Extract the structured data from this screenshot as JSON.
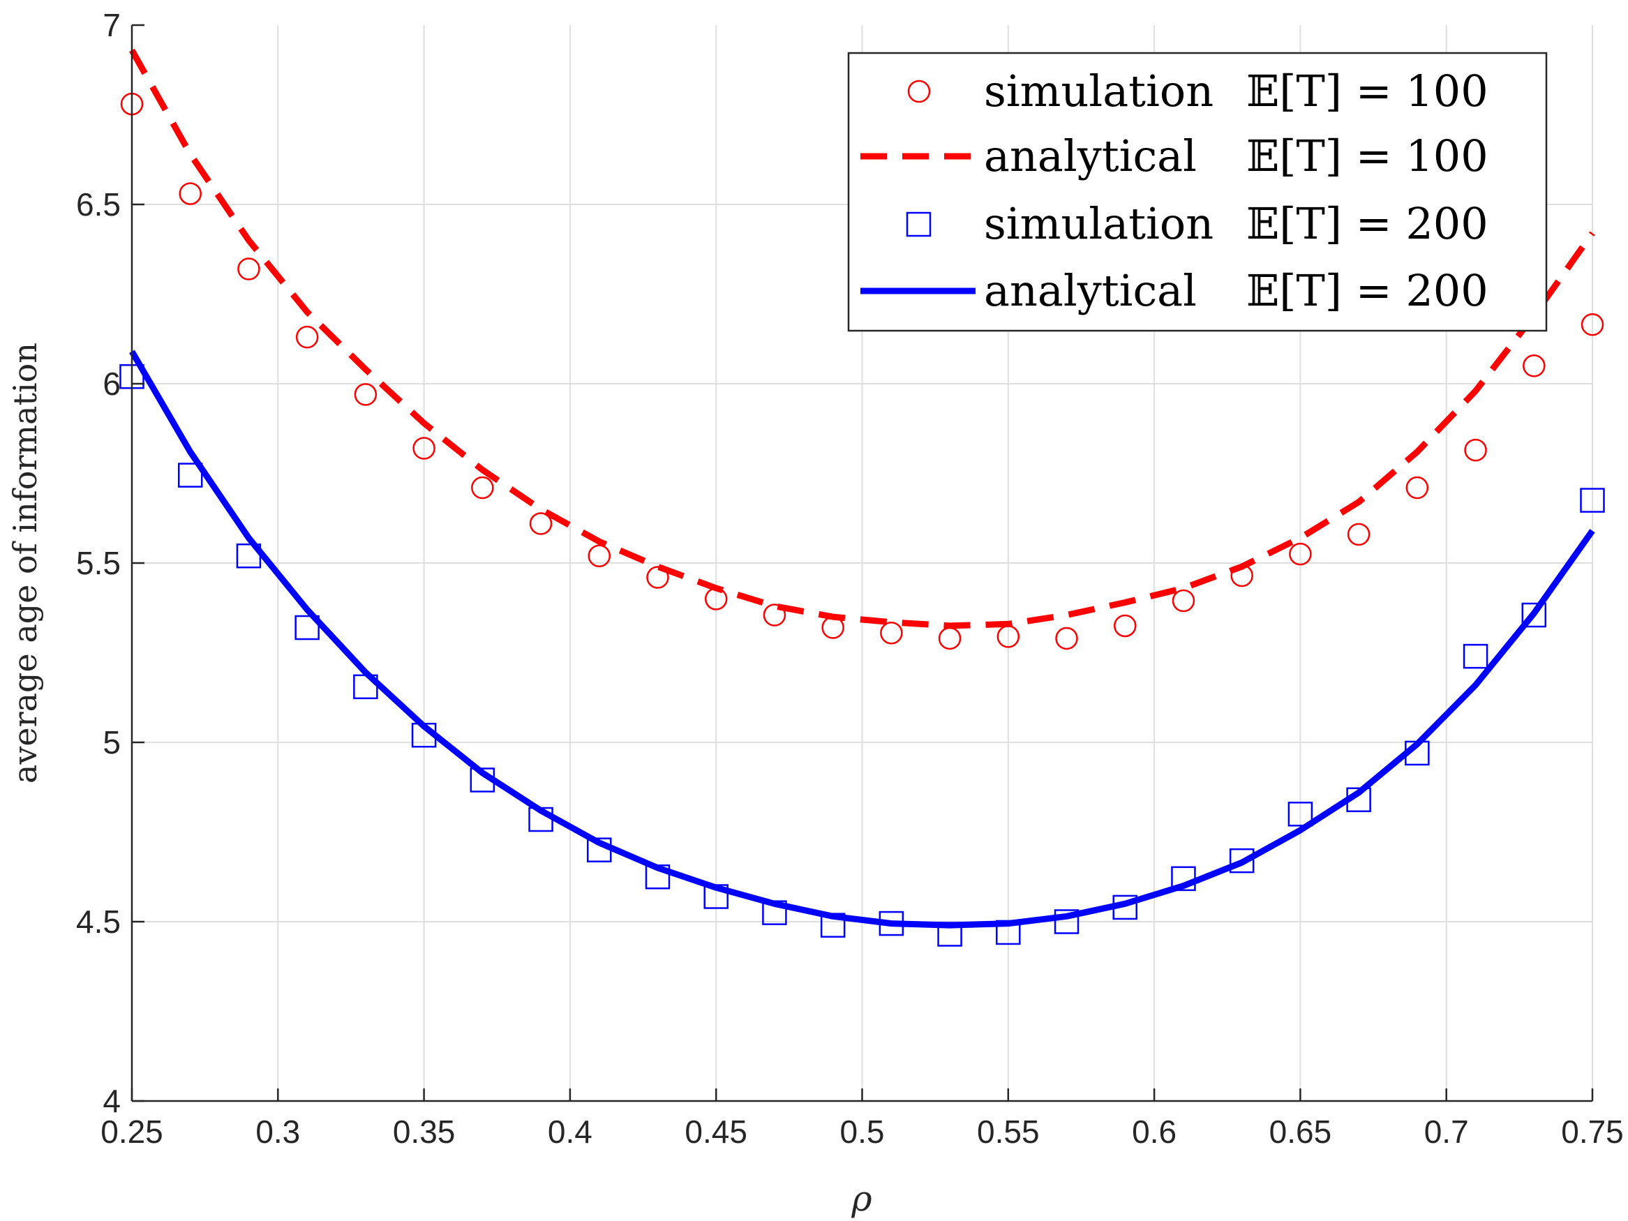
{
  "chart_data": {
    "type": "line",
    "title": "",
    "xlabel": "ρ",
    "ylabel": "average age of information",
    "xlim": [
      0.25,
      0.75
    ],
    "ylim": [
      4,
      7
    ],
    "grid": true,
    "legend_position": "top-right",
    "xticks": [
      {
        "value": 0.25,
        "label": "0.25"
      },
      {
        "value": 0.3,
        "label": "0.3"
      },
      {
        "value": 0.35,
        "label": "0.35"
      },
      {
        "value": 0.4,
        "label": "0.4"
      },
      {
        "value": 0.45,
        "label": "0.45"
      },
      {
        "value": 0.5,
        "label": "0.5"
      },
      {
        "value": 0.55,
        "label": "0.55"
      },
      {
        "value": 0.6,
        "label": "0.6"
      },
      {
        "value": 0.65,
        "label": "0.65"
      },
      {
        "value": 0.7,
        "label": "0.7"
      },
      {
        "value": 0.75,
        "label": "0.75"
      }
    ],
    "yticks": [
      {
        "value": 4,
        "label": "4"
      },
      {
        "value": 4.5,
        "label": "4.5"
      },
      {
        "value": 5,
        "label": "5"
      },
      {
        "value": 5.5,
        "label": "5.5"
      },
      {
        "value": 6,
        "label": "6"
      },
      {
        "value": 6.5,
        "label": "6.5"
      },
      {
        "value": 7,
        "label": "7"
      }
    ],
    "series": [
      {
        "name": "simulation 𝔼[T] = 100",
        "style": "circle",
        "color": "#ff0000",
        "x": [
          0.25,
          0.27,
          0.29,
          0.31,
          0.33,
          0.35,
          0.37,
          0.39,
          0.41,
          0.43,
          0.45,
          0.47,
          0.49,
          0.51,
          0.53,
          0.55,
          0.57,
          0.59,
          0.61,
          0.63,
          0.65,
          0.67,
          0.69,
          0.71,
          0.73,
          0.75
        ],
        "y": [
          6.78,
          6.53,
          6.32,
          6.13,
          5.97,
          5.82,
          5.71,
          5.61,
          5.52,
          5.46,
          5.4,
          5.355,
          5.32,
          5.305,
          5.29,
          5.295,
          5.29,
          5.325,
          5.395,
          5.465,
          5.525,
          5.58,
          5.71,
          5.815,
          6.05,
          6.165
        ]
      },
      {
        "name": "analytical 𝔼[T] = 100",
        "style": "dashed",
        "color": "#ff0000",
        "x": [
          0.25,
          0.27,
          0.29,
          0.31,
          0.33,
          0.35,
          0.37,
          0.39,
          0.41,
          0.43,
          0.45,
          0.47,
          0.49,
          0.51,
          0.53,
          0.55,
          0.57,
          0.59,
          0.61,
          0.63,
          0.65,
          0.67,
          0.69,
          0.71,
          0.73,
          0.75
        ],
        "y": [
          6.93,
          6.64,
          6.4,
          6.2,
          6.04,
          5.89,
          5.76,
          5.65,
          5.56,
          5.49,
          5.43,
          5.38,
          5.35,
          5.335,
          5.325,
          5.33,
          5.355,
          5.39,
          5.43,
          5.49,
          5.57,
          5.67,
          5.81,
          5.98,
          6.19,
          6.42
        ]
      },
      {
        "name": "simulation 𝔼[T] = 200",
        "style": "square",
        "color": "#0000ff",
        "x": [
          0.25,
          0.27,
          0.29,
          0.31,
          0.33,
          0.35,
          0.37,
          0.39,
          0.41,
          0.43,
          0.45,
          0.47,
          0.49,
          0.51,
          0.53,
          0.55,
          0.57,
          0.59,
          0.61,
          0.63,
          0.65,
          0.67,
          0.69,
          0.71,
          0.73,
          0.75
        ],
        "y": [
          6.02,
          5.745,
          5.52,
          5.32,
          5.155,
          5.02,
          4.895,
          4.785,
          4.7,
          4.625,
          4.57,
          4.525,
          4.49,
          4.495,
          4.465,
          4.47,
          4.5,
          4.54,
          4.62,
          4.67,
          4.8,
          4.84,
          4.97,
          5.24,
          5.355,
          5.675
        ]
      },
      {
        "name": "analytical 𝔼[T] = 200",
        "style": "solid",
        "color": "#0000ff",
        "x": [
          0.25,
          0.27,
          0.29,
          0.31,
          0.33,
          0.35,
          0.37,
          0.39,
          0.41,
          0.43,
          0.45,
          0.47,
          0.49,
          0.51,
          0.53,
          0.55,
          0.57,
          0.59,
          0.61,
          0.63,
          0.65,
          0.67,
          0.69,
          0.71,
          0.73,
          0.75
        ],
        "y": [
          6.09,
          5.81,
          5.57,
          5.37,
          5.195,
          5.045,
          4.915,
          4.81,
          4.72,
          4.65,
          4.595,
          4.55,
          4.515,
          4.495,
          4.49,
          4.495,
          4.515,
          4.55,
          4.6,
          4.665,
          4.755,
          4.86,
          4.995,
          5.16,
          5.36,
          5.59
        ]
      }
    ]
  },
  "legend": {
    "entries": [
      {
        "method": "simulation",
        "eq": "𝔼[T] = 100"
      },
      {
        "method": "analytical",
        "eq": "𝔼[T] = 100"
      },
      {
        "method": "simulation",
        "eq": "𝔼[T] = 200"
      },
      {
        "method": "analytical",
        "eq": "𝔼[T] = 200"
      }
    ]
  },
  "colors": {
    "axis": "#262626",
    "grid": "#dfdfdf",
    "red": "#ff0000",
    "blue": "#0000ff"
  }
}
